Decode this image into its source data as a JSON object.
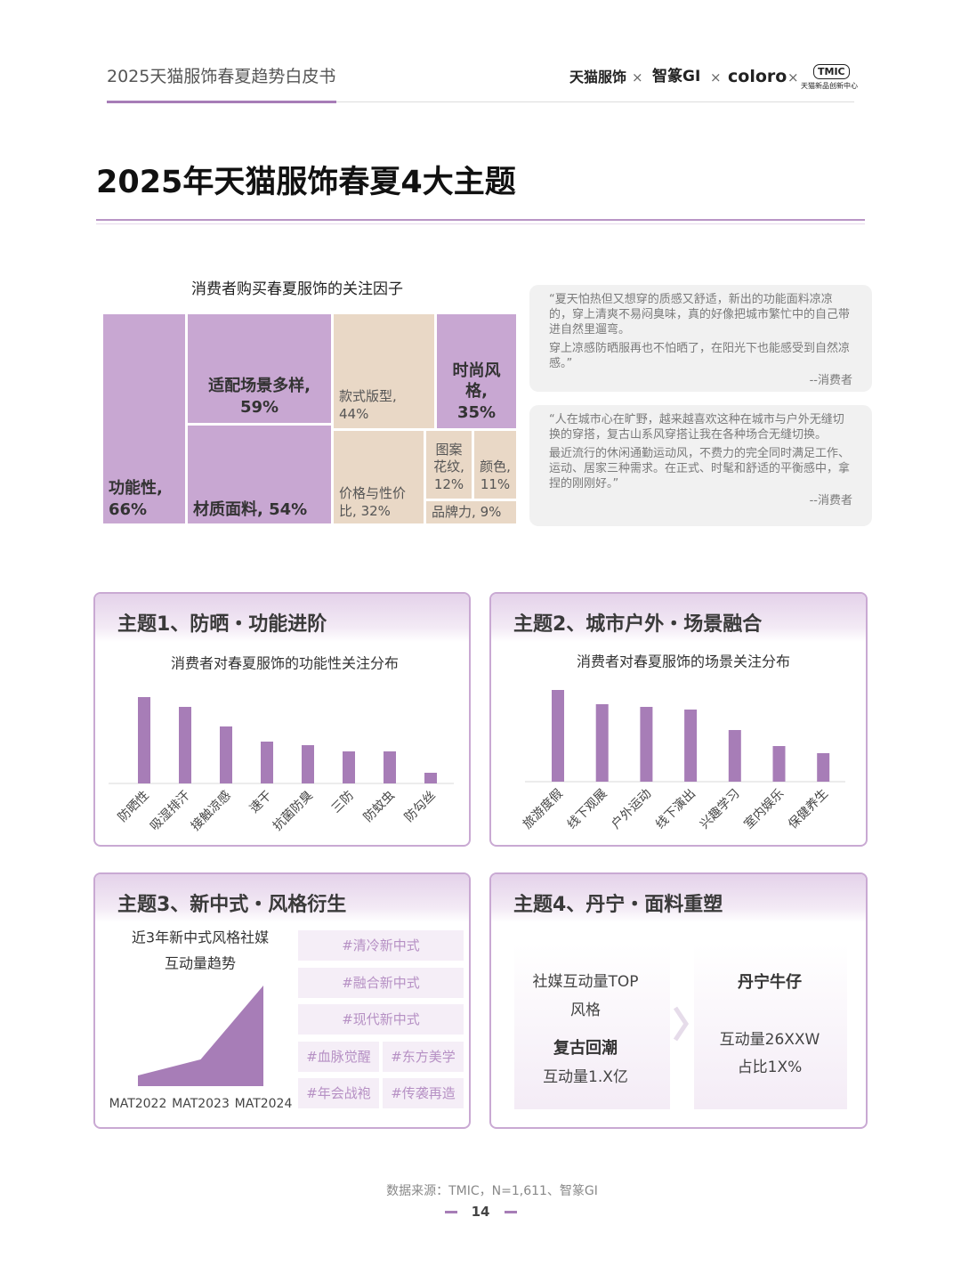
{
  "header": {
    "title": "2025天猫服饰春夏趋势白皮书",
    "logos": [
      "天猫服饰",
      "智篆GI",
      "coloro",
      "TMIC"
    ],
    "logo_sub": "天猫新品创新中心",
    "separator": "×"
  },
  "page_title": "2025年天猫服饰春夏4大主题",
  "quotes": [
    {
      "paragraphs": [
        "“夏天怕热但又想穿的质感又舒适，新出的功能面料凉凉的，穿上清爽不易闷臭味，真的好像把城市繁忙中的自己带进自然里遛弯。",
        "穿上凉感防晒服再也不怕晒了，在阳光下也能感受到自然凉感。”"
      ],
      "source": "--消费者"
    },
    {
      "paragraphs": [
        "“人在城市心在旷野，越来越喜欢这种在城市与户外无缝切换的穿搭，复古山系风穿搭让我在各种场合无缝切换。",
        "最近流行的休闲通勤运动风，不费力的完全同时满足工作、运动、居家三种需求。在正式、时髦和舒适的平衡感中，拿捏的刚刚好。”"
      ],
      "source": "--消费者"
    }
  ],
  "themes": [
    {
      "title": "主题1、防晒・功能进阶"
    },
    {
      "title": "主题2、城市户外・场景融合"
    },
    {
      "title": "主题3、新中式・风格衍生",
      "tags": [
        "#清冷新中式",
        "#融合新中式",
        "#现代新中式",
        "#血脉觉醒",
        "#东方美学",
        "#年会战袍",
        "#传袭再造"
      ]
    },
    {
      "title": "主题4、丹宁・面料重塑",
      "left": {
        "lines": [
          "社媒互动量TOP",
          "风格"
        ],
        "highlight": "复古回潮",
        "metric": "互动量1.X亿"
      },
      "right": {
        "highlight": "丹宁牛仔",
        "lines": [
          "互动量26XXW",
          "占比1X%"
        ]
      }
    }
  ],
  "chart_data": [
    {
      "type": "treemap",
      "title": "消费者购买春夏服饰的关注因子",
      "cells": [
        {
          "name": "功能性,",
          "value": 66,
          "value_label": "66%",
          "color": "#c8a7d2"
        },
        {
          "name": "适配场景多样,",
          "value": 59,
          "value_label": "59%",
          "color": "#c8a7d2"
        },
        {
          "name": "材质面料,",
          "value": 54,
          "value_label": "54%",
          "color": "#c8a7d2"
        },
        {
          "name": "款式版型,",
          "value": 44,
          "value_label": "44%",
          "color": "#e9d8c6"
        },
        {
          "name": "时尚风格,",
          "value": 35,
          "value_label": "35%",
          "color": "#c8a7d2"
        },
        {
          "name": "价格与性价比,",
          "value": 32,
          "value_label": "32%",
          "color": "#e9d8c6"
        },
        {
          "name": "图案花纹,",
          "value": 12,
          "value_label": "12%",
          "color": "#e9d8c6"
        },
        {
          "name": "颜色,",
          "value": 11,
          "value_label": "11%",
          "color": "#e9d8c6"
        },
        {
          "name": "品牌力,",
          "value": 9,
          "value_label": "9%",
          "color": "#e9d8c6"
        }
      ]
    },
    {
      "type": "bar",
      "title": "消费者对春夏服饰的功能性关注分布",
      "categories": [
        "防晒性",
        "吸湿排汗",
        "接触凉感",
        "速干",
        "抗菌防臭",
        "三防",
        "防蚊虫",
        "防勾丝"
      ],
      "values": [
        97,
        86,
        64,
        47,
        43,
        36,
        36,
        12
      ],
      "color": "#a77db7"
    },
    {
      "type": "bar",
      "title": "消费者对春夏服饰的场景关注分布",
      "categories": [
        "旅游度假",
        "线下观展",
        "户外运动",
        "线下演出",
        "兴趣学习",
        "室内娱乐",
        "保健养生"
      ],
      "values": [
        103,
        87,
        84,
        81,
        58,
        40,
        32
      ],
      "color": "#a77db7"
    },
    {
      "type": "area",
      "title_lines": [
        "近3年新中式风格社媒",
        "互动量趋势"
      ],
      "categories": [
        "MAT2022",
        "MAT2023",
        "MAT2024"
      ],
      "values": [
        12,
        30,
        113
      ],
      "color": "#a77db7"
    }
  ],
  "footer": {
    "source": "数据来源：TMIC，N=1,611、智篆GI",
    "page": 14
  }
}
